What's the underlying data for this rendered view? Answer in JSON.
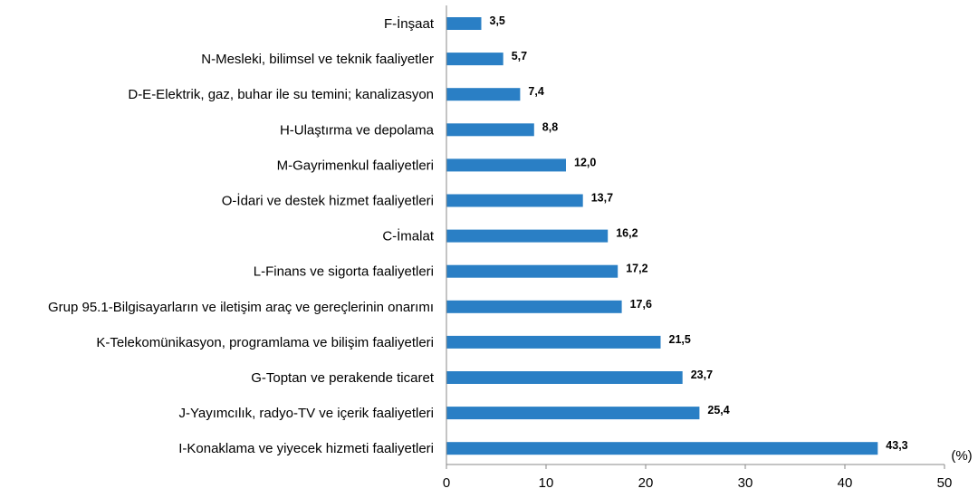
{
  "chart_data": {
    "type": "bar",
    "orientation": "horizontal",
    "categories": [
      "F-İnşaat",
      "N-Mesleki, bilimsel ve teknik faaliyetler",
      "D-E-Elektrik, gaz, buhar ile su temini; kanalizasyon",
      "H-Ulaştırma ve depolama",
      "M-Gayrimenkul faaliyetleri",
      "O-İdari ve destek hizmet faaliyetleri",
      "C-İmalat",
      "L-Finans ve sigorta faaliyetleri",
      "Grup 95.1-Bilgisayarların ve iletişim araç ve gereçlerinin onarımı",
      "K-Telekomünikasyon, programlama ve bilişim faaliyetleri",
      "G-Toptan ve perakende ticaret",
      "J-Yayımcılık, radyo-TV ve içerik faaliyetleri",
      "I-Konaklama ve yiyecek hizmeti faaliyetleri"
    ],
    "values": [
      3.5,
      5.7,
      7.4,
      8.8,
      12.0,
      13.7,
      16.2,
      17.2,
      17.6,
      21.5,
      23.7,
      25.4,
      43.3
    ],
    "value_labels": [
      "3,5",
      "5,7",
      "7,4",
      "8,8",
      "12,0",
      "13,7",
      "16,2",
      "17,2",
      "17,6",
      "21,5",
      "23,7",
      "25,4",
      "43,3"
    ],
    "x_ticks": [
      "0",
      "10",
      "20",
      "30",
      "40",
      "50"
    ],
    "xlim": [
      0,
      50
    ],
    "x_unit": "(%)",
    "bar_color": "#2a7fc5",
    "grid": false,
    "legend": "none"
  }
}
